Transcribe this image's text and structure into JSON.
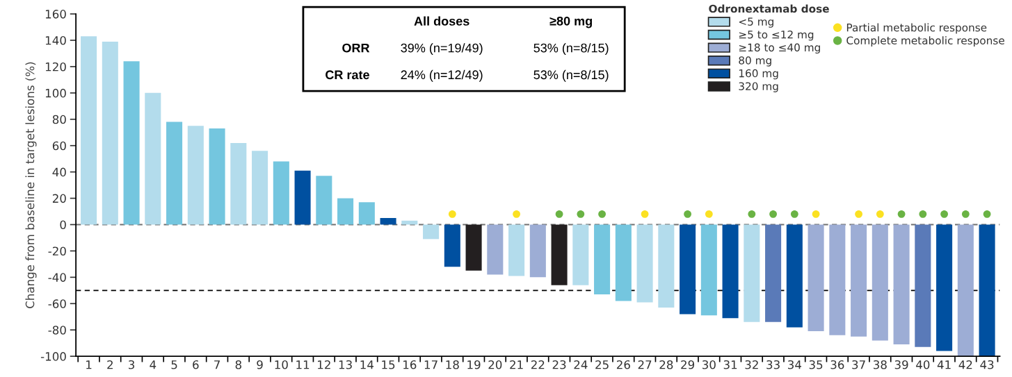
{
  "chart_data": {
    "type": "bar",
    "stacked": true,
    "ylabel": "Change from baseline in target lesions (%)",
    "legend_title": "Odronextamab dose",
    "legend": "top right",
    "categories": [
      "1",
      "2",
      "3",
      "4",
      "5",
      "6",
      "7",
      "8",
      "9",
      "10",
      "11",
      "12",
      "13",
      "14",
      "15",
      "16",
      "17",
      "18",
      "19",
      "20",
      "21",
      "22",
      "23",
      "24",
      "25",
      "26",
      "27",
      "28",
      "29",
      "30",
      "31",
      "32",
      "33",
      "34",
      "35",
      "36",
      "37",
      "38",
      "39",
      "40",
      "41",
      "42",
      "43"
    ],
    "ylim": [
      -100,
      160
    ],
    "yticks": [
      -100,
      -80,
      -60,
      -40,
      -20,
      0,
      20,
      40,
      60,
      80,
      100,
      120,
      140,
      160
    ],
    "series": [
      {
        "name": "<5 mg",
        "color": "#b3dcec",
        "values": [
          143,
          139,
          null,
          100,
          null,
          75,
          null,
          62,
          56,
          null,
          null,
          null,
          null,
          null,
          null,
          3,
          -11,
          null,
          null,
          null,
          -39,
          null,
          null,
          -46,
          null,
          null,
          -59,
          -63,
          null,
          null,
          null,
          -74,
          null,
          null,
          null,
          null,
          null,
          null,
          null,
          null,
          null,
          null,
          null
        ]
      },
      {
        "name": "≥5 to ≤12 mg",
        "color": "#74c6df",
        "values": [
          null,
          null,
          124,
          null,
          78,
          null,
          73,
          null,
          null,
          48,
          null,
          37,
          20,
          17,
          null,
          null,
          null,
          null,
          null,
          null,
          null,
          null,
          null,
          null,
          -53,
          -58,
          null,
          null,
          null,
          -69,
          null,
          null,
          null,
          null,
          null,
          null,
          null,
          null,
          null,
          null,
          null,
          null,
          null
        ]
      },
      {
        "name": "≥18 to ≤40 mg",
        "color": "#9dadd5",
        "values": [
          null,
          null,
          null,
          null,
          null,
          null,
          null,
          null,
          null,
          null,
          null,
          null,
          null,
          null,
          null,
          null,
          null,
          null,
          null,
          -38,
          null,
          -40,
          null,
          null,
          null,
          null,
          null,
          null,
          null,
          null,
          null,
          null,
          null,
          null,
          -81,
          -84,
          -85,
          -88,
          -91,
          null,
          null,
          -100,
          null
        ]
      },
      {
        "name": "80 mg",
        "color": "#5a7ab8",
        "values": [
          null,
          null,
          null,
          null,
          null,
          null,
          null,
          null,
          null,
          null,
          null,
          null,
          null,
          null,
          null,
          null,
          null,
          null,
          null,
          null,
          null,
          null,
          null,
          null,
          null,
          null,
          null,
          null,
          null,
          null,
          null,
          null,
          -74,
          null,
          null,
          null,
          null,
          null,
          null,
          -93,
          null,
          null,
          null
        ]
      },
      {
        "name": "160 mg",
        "color": "#0050a0",
        "values": [
          null,
          null,
          null,
          null,
          null,
          null,
          null,
          null,
          null,
          null,
          41,
          null,
          null,
          null,
          5,
          null,
          null,
          -32,
          null,
          null,
          null,
          null,
          null,
          null,
          null,
          null,
          null,
          null,
          -68,
          null,
          -71,
          null,
          null,
          -78,
          null,
          null,
          null,
          null,
          null,
          null,
          -96,
          null,
          -100
        ]
      },
      {
        "name": "320 mg",
        "color": "#231f20",
        "values": [
          null,
          null,
          null,
          null,
          null,
          null,
          null,
          null,
          null,
          null,
          null,
          null,
          null,
          null,
          null,
          null,
          null,
          null,
          -35,
          null,
          null,
          null,
          -46,
          null,
          null,
          null,
          null,
          null,
          null,
          null,
          null,
          null,
          null,
          null,
          null,
          null,
          null,
          null,
          null,
          null,
          null,
          null,
          null
        ]
      },
      {
        "type": "scatter",
        "name": "Partial metabolic response",
        "color": "#fbe122",
        "x": [
          "18",
          "21",
          "27",
          "30",
          "35",
          "37",
          "38"
        ],
        "values": [
          8,
          8,
          8,
          8,
          8,
          8,
          8
        ]
      },
      {
        "type": "scatter",
        "name": "Complete metabolic response",
        "color": "#6ab344",
        "x": [
          "23",
          "24",
          "25",
          "29",
          "32",
          "33",
          "34",
          "39",
          "40",
          "41",
          "42",
          "43"
        ],
        "values": [
          8,
          8,
          8,
          8,
          8,
          8,
          8,
          8,
          8,
          8,
          8,
          8
        ]
      }
    ],
    "ref_lines": [
      {
        "axis": "y",
        "value": 0,
        "color": "#707070",
        "line_style": "dashed"
      },
      {
        "axis": "y",
        "value": -50,
        "color": "#000000",
        "line_style": "dashed"
      }
    ],
    "annotations": [
      "All doses",
      "≥80 mg",
      "ORR",
      "39% (n=19/49)",
      "53% (n=8/15)",
      "CR rate",
      "24% (n=12/49)",
      "53% (n=8/15)"
    ],
    "marker": "circle"
  }
}
